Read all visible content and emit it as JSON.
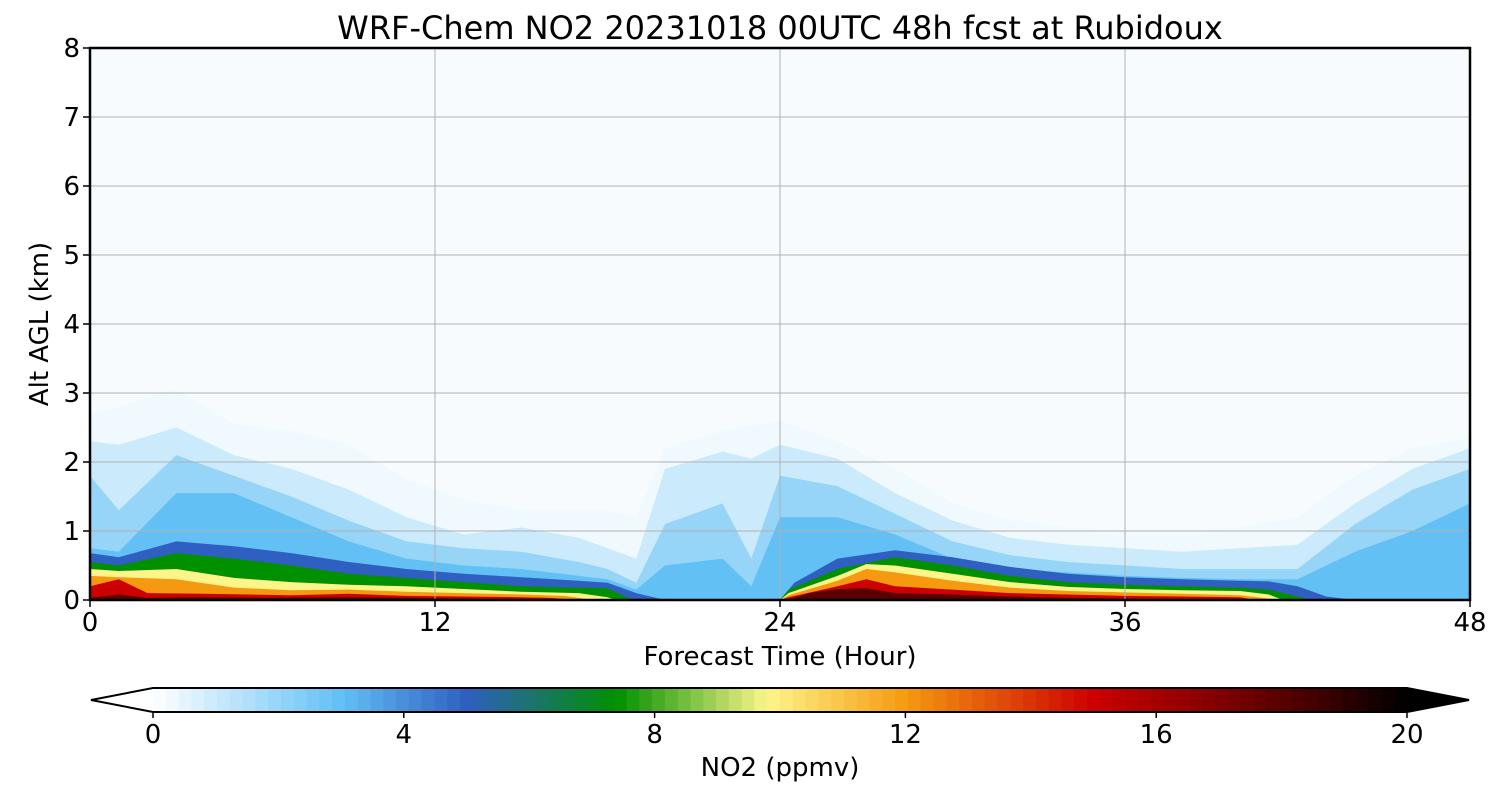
{
  "chart_data": {
    "type": "heatmap",
    "title": "WRF-Chem NO2  20231018 00UTC 48h fcst at Rubidoux",
    "xlabel": "Forecast Time (Hour)",
    "ylabel": "Alt AGL (km)",
    "xlim": [
      0,
      48
    ],
    "ylim": [
      0,
      8
    ],
    "x_ticks": [
      "0",
      "12",
      "24",
      "36",
      "48"
    ],
    "y_ticks": [
      "0",
      "1",
      "2",
      "3",
      "4",
      "5",
      "6",
      "7",
      "8"
    ],
    "grid": true,
    "colorbar": {
      "label": "NO2  (ppmv)",
      "range": [
        0,
        20
      ],
      "ticks": [
        "0",
        "4",
        "8",
        "12",
        "16",
        "20"
      ],
      "extend": "both",
      "stops": [
        {
          "v": 0,
          "color": "#ffffff"
        },
        {
          "v": 3,
          "color": "#62c0f5"
        },
        {
          "v": 5,
          "color": "#2f5fc0"
        },
        {
          "v": 7.4,
          "color": "#009000"
        },
        {
          "v": 9.8,
          "color": "#fdf58a"
        },
        {
          "v": 12,
          "color": "#f59a10"
        },
        {
          "v": 15,
          "color": "#cc0000"
        },
        {
          "v": 18,
          "color": "#5a0000"
        },
        {
          "v": 20,
          "color": "#000000"
        }
      ]
    },
    "contour_boundaries": [
      {
        "level": 0.3,
        "pts": [
          [
            0,
            2.7
          ],
          [
            1,
            2.8
          ],
          [
            3,
            3.05
          ],
          [
            5,
            2.55
          ],
          [
            7,
            2.45
          ],
          [
            9,
            2.25
          ],
          [
            11,
            1.75
          ],
          [
            13,
            1.45
          ],
          [
            15,
            1.3
          ],
          [
            17,
            1.3
          ],
          [
            18,
            1.3
          ],
          [
            19,
            1.2
          ],
          [
            20,
            2.2
          ],
          [
            22,
            2.45
          ],
          [
            24,
            2.6
          ],
          [
            26,
            2.3
          ],
          [
            28,
            1.9
          ],
          [
            30,
            1.4
          ],
          [
            32,
            1.15
          ],
          [
            34,
            1.05
          ],
          [
            36,
            1.0
          ],
          [
            38,
            1.0
          ],
          [
            40,
            1.05
          ],
          [
            42,
            1.2
          ],
          [
            44,
            1.8
          ],
          [
            46,
            2.2
          ],
          [
            48,
            2.35
          ]
        ]
      },
      {
        "level": 1.0,
        "pts": [
          [
            0,
            2.3
          ],
          [
            1,
            2.25
          ],
          [
            3,
            2.5
          ],
          [
            5,
            2.1
          ],
          [
            7,
            1.9
          ],
          [
            9,
            1.6
          ],
          [
            11,
            1.2
          ],
          [
            13,
            0.95
          ],
          [
            15,
            1.05
          ],
          [
            17,
            0.9
          ],
          [
            18,
            0.75
          ],
          [
            19,
            0.6
          ],
          [
            20,
            1.9
          ],
          [
            22,
            2.15
          ],
          [
            23,
            2.05
          ],
          [
            24,
            2.25
          ],
          [
            26,
            2.05
          ],
          [
            28,
            1.55
          ],
          [
            30,
            1.15
          ],
          [
            32,
            0.9
          ],
          [
            34,
            0.8
          ],
          [
            36,
            0.75
          ],
          [
            38,
            0.7
          ],
          [
            40,
            0.75
          ],
          [
            42,
            0.8
          ],
          [
            44,
            1.4
          ],
          [
            46,
            1.9
          ],
          [
            48,
            2.2
          ]
        ]
      },
      {
        "level": 2.0,
        "pts": [
          [
            0,
            1.8
          ],
          [
            1,
            1.3
          ],
          [
            3,
            2.1
          ],
          [
            5,
            1.8
          ],
          [
            7,
            1.5
          ],
          [
            9,
            1.15
          ],
          [
            11,
            0.85
          ],
          [
            13,
            0.75
          ],
          [
            15,
            0.7
          ],
          [
            17,
            0.55
          ],
          [
            18,
            0.45
          ],
          [
            19,
            0.25
          ],
          [
            20,
            1.1
          ],
          [
            22,
            1.4
          ],
          [
            23,
            0.6
          ],
          [
            24,
            1.8
          ],
          [
            26,
            1.65
          ],
          [
            28,
            1.25
          ],
          [
            30,
            0.85
          ],
          [
            32,
            0.65
          ],
          [
            34,
            0.55
          ],
          [
            36,
            0.5
          ],
          [
            38,
            0.45
          ],
          [
            40,
            0.45
          ],
          [
            42,
            0.45
          ],
          [
            44,
            1.1
          ],
          [
            46,
            1.6
          ],
          [
            48,
            1.9
          ]
        ]
      },
      {
        "level": 3.0,
        "pts": [
          [
            0,
            0.75
          ],
          [
            1,
            0.7
          ],
          [
            3,
            1.55
          ],
          [
            5,
            1.55
          ],
          [
            7,
            1.2
          ],
          [
            9,
            0.85
          ],
          [
            11,
            0.6
          ],
          [
            13,
            0.5
          ],
          [
            15,
            0.45
          ],
          [
            17,
            0.35
          ],
          [
            18,
            0.3
          ],
          [
            19,
            0.15
          ],
          [
            20,
            0.5
          ],
          [
            22,
            0.6
          ],
          [
            23,
            0.2
          ],
          [
            24,
            1.2
          ],
          [
            26,
            1.2
          ],
          [
            28,
            0.95
          ],
          [
            30,
            0.6
          ],
          [
            32,
            0.45
          ],
          [
            34,
            0.4
          ],
          [
            36,
            0.35
          ],
          [
            38,
            0.32
          ],
          [
            40,
            0.3
          ],
          [
            42,
            0.3
          ],
          [
            44,
            0.7
          ],
          [
            46,
            1.0
          ],
          [
            48,
            1.4
          ]
        ]
      },
      {
        "level": 5.0,
        "pts": [
          [
            0,
            0.68
          ],
          [
            1,
            0.62
          ],
          [
            3,
            0.85
          ],
          [
            5,
            0.78
          ],
          [
            7,
            0.68
          ],
          [
            9,
            0.55
          ],
          [
            11,
            0.45
          ],
          [
            13,
            0.38
          ],
          [
            15,
            0.33
          ],
          [
            17,
            0.28
          ],
          [
            18,
            0.25
          ],
          [
            19,
            0.1
          ],
          [
            20,
            0.0
          ],
          [
            24,
            0.0
          ],
          [
            24.5,
            0.25
          ],
          [
            26,
            0.6
          ],
          [
            28,
            0.72
          ],
          [
            30,
            0.62
          ],
          [
            32,
            0.48
          ],
          [
            34,
            0.38
          ],
          [
            36,
            0.33
          ],
          [
            38,
            0.3
          ],
          [
            40,
            0.28
          ],
          [
            41,
            0.27
          ],
          [
            42,
            0.2
          ],
          [
            43,
            0.05
          ],
          [
            44,
            0.0
          ],
          [
            48,
            0.0
          ]
        ]
      },
      {
        "level": 7.4,
        "pts": [
          [
            0,
            0.55
          ],
          [
            1,
            0.5
          ],
          [
            3,
            0.68
          ],
          [
            5,
            0.6
          ],
          [
            7,
            0.5
          ],
          [
            9,
            0.38
          ],
          [
            11,
            0.32
          ],
          [
            13,
            0.26
          ],
          [
            15,
            0.2
          ],
          [
            17,
            0.18
          ],
          [
            18,
            0.17
          ],
          [
            18.6,
            0.05
          ],
          [
            19,
            0.0
          ],
          [
            24,
            0.0
          ],
          [
            24.3,
            0.15
          ],
          [
            26,
            0.45
          ],
          [
            28,
            0.62
          ],
          [
            30,
            0.5
          ],
          [
            32,
            0.35
          ],
          [
            34,
            0.26
          ],
          [
            36,
            0.22
          ],
          [
            38,
            0.2
          ],
          [
            40,
            0.18
          ],
          [
            41,
            0.15
          ],
          [
            42,
            0.05
          ],
          [
            42.5,
            0.0
          ],
          [
            48,
            0.0
          ]
        ]
      },
      {
        "level": 9.8,
        "pts": [
          [
            0,
            0.45
          ],
          [
            1,
            0.42
          ],
          [
            3,
            0.45
          ],
          [
            5,
            0.32
          ],
          [
            7,
            0.26
          ],
          [
            9,
            0.22
          ],
          [
            11,
            0.2
          ],
          [
            13,
            0.16
          ],
          [
            15,
            0.12
          ],
          [
            17,
            0.1
          ],
          [
            18,
            0.04
          ],
          [
            18.3,
            0.0
          ],
          [
            24,
            0.0
          ],
          [
            24.3,
            0.1
          ],
          [
            26,
            0.35
          ],
          [
            27,
            0.52
          ],
          [
            28,
            0.5
          ],
          [
            30,
            0.38
          ],
          [
            32,
            0.26
          ],
          [
            34,
            0.19
          ],
          [
            36,
            0.16
          ],
          [
            38,
            0.14
          ],
          [
            40,
            0.13
          ],
          [
            41,
            0.08
          ],
          [
            41.5,
            0.0
          ],
          [
            48,
            0.0
          ]
        ]
      },
      {
        "level": 12.0,
        "pts": [
          [
            0,
            0.35
          ],
          [
            1,
            0.33
          ],
          [
            3,
            0.3
          ],
          [
            5,
            0.18
          ],
          [
            7,
            0.14
          ],
          [
            9,
            0.15
          ],
          [
            11,
            0.12
          ],
          [
            13,
            0.1
          ],
          [
            15,
            0.08
          ],
          [
            16.5,
            0.06
          ],
          [
            17,
            0.03
          ],
          [
            17.5,
            0.0
          ],
          [
            24,
            0.0
          ],
          [
            24.3,
            0.07
          ],
          [
            26,
            0.28
          ],
          [
            27,
            0.45
          ],
          [
            28,
            0.4
          ],
          [
            30,
            0.28
          ],
          [
            32,
            0.18
          ],
          [
            34,
            0.13
          ],
          [
            36,
            0.11
          ],
          [
            38,
            0.09
          ],
          [
            40,
            0.07
          ],
          [
            41,
            0.02
          ],
          [
            41.3,
            0.0
          ],
          [
            48,
            0.0
          ]
        ]
      },
      {
        "level": 15.0,
        "pts": [
          [
            0,
            0.2
          ],
          [
            1,
            0.3
          ],
          [
            2,
            0.1
          ],
          [
            4,
            0.09
          ],
          [
            7,
            0.07
          ],
          [
            9,
            0.09
          ],
          [
            11,
            0.06
          ],
          [
            13,
            0.05
          ],
          [
            15,
            0.04
          ],
          [
            16,
            0.03
          ],
          [
            17,
            0.0
          ],
          [
            24,
            0.0
          ],
          [
            24.3,
            0.04
          ],
          [
            26,
            0.2
          ],
          [
            27,
            0.3
          ],
          [
            28,
            0.2
          ],
          [
            30,
            0.15
          ],
          [
            32,
            0.1
          ],
          [
            34,
            0.08
          ],
          [
            36,
            0.06
          ],
          [
            38,
            0.05
          ],
          [
            40,
            0.04
          ],
          [
            40.5,
            0.0
          ],
          [
            48,
            0.0
          ]
        ]
      },
      {
        "level": 18.0,
        "pts": [
          [
            0,
            0.03
          ],
          [
            1,
            0.08
          ],
          [
            2,
            0.03
          ],
          [
            4,
            0.04
          ],
          [
            6,
            0.03
          ],
          [
            9,
            0.04
          ],
          [
            11,
            0.03
          ],
          [
            13,
            0.02
          ],
          [
            15,
            0.0
          ],
          [
            24,
            0.0
          ],
          [
            24.5,
            0.03
          ],
          [
            25,
            0.1
          ],
          [
            26,
            0.16
          ],
          [
            27,
            0.17
          ],
          [
            28,
            0.1
          ],
          [
            30,
            0.08
          ],
          [
            32,
            0.05
          ],
          [
            34,
            0.03
          ],
          [
            36,
            0.02
          ],
          [
            38,
            0.0
          ],
          [
            48,
            0.0
          ]
        ]
      }
    ]
  }
}
